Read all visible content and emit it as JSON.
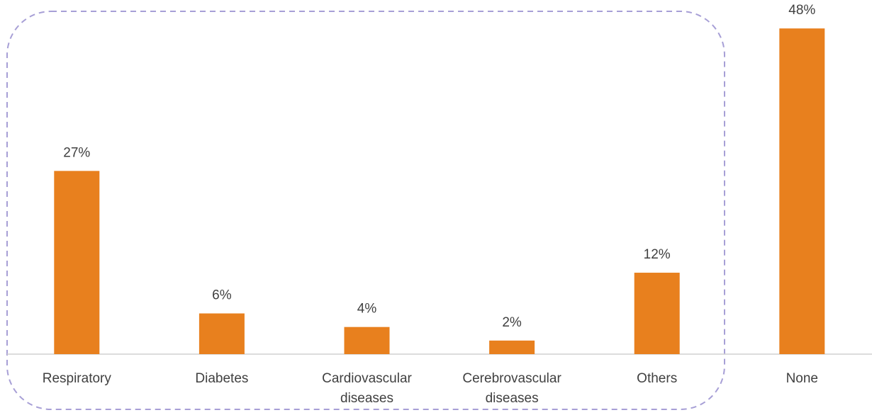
{
  "chart_data": {
    "type": "bar",
    "categories": [
      "Respiratory",
      "Diabetes",
      "Cardiovascular diseases",
      "Cerebrovascular diseases",
      "Others",
      "None"
    ],
    "values": [
      27,
      6,
      4,
      2,
      12,
      48
    ],
    "value_labels": [
      "27%",
      "6%",
      "4%",
      "2%",
      "12%",
      "48%"
    ],
    "color": "#e8801e"
  }
}
